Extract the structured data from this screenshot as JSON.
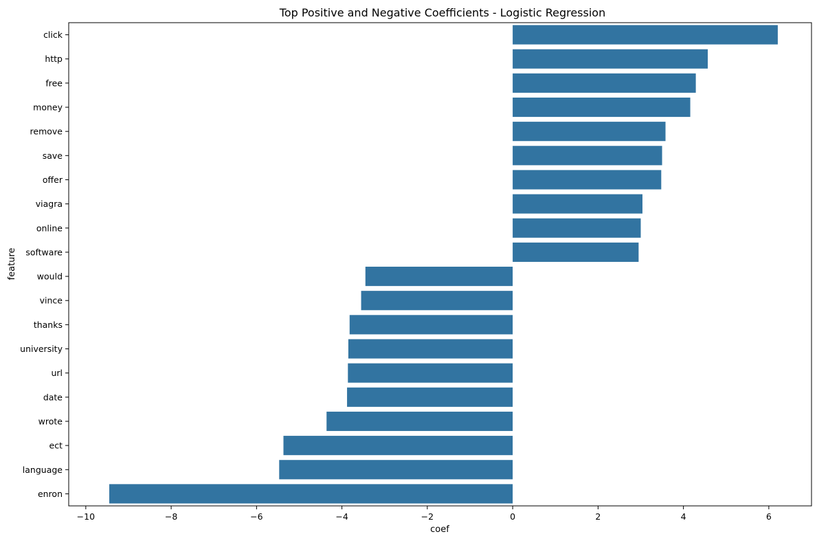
{
  "chart_data": {
    "type": "bar",
    "orientation": "horizontal",
    "title": "Top Positive and Negative Coefficients - Logistic Regression",
    "xlabel": "coef",
    "ylabel": "feature",
    "categories": [
      "click",
      "http",
      "free",
      "money",
      "remove",
      "save",
      "offer",
      "viagra",
      "online",
      "software",
      "would",
      "vince",
      "thanks",
      "university",
      "url",
      "date",
      "wrote",
      "ect",
      "language",
      "enron"
    ],
    "values": [
      6.21,
      4.57,
      4.29,
      4.16,
      3.58,
      3.5,
      3.48,
      3.04,
      3.0,
      2.95,
      -3.45,
      -3.55,
      -3.82,
      -3.85,
      -3.86,
      -3.88,
      -4.36,
      -5.37,
      -5.47,
      -9.45
    ],
    "xlim": [
      -10.4,
      7.0
    ],
    "xticks": [
      -10,
      -8,
      -6,
      -4,
      -2,
      0,
      2,
      4,
      6
    ],
    "xtick_labels": [
      "−10",
      "−8",
      "−6",
      "−4",
      "−2",
      "0",
      "2",
      "4",
      "6"
    ],
    "bar_color": "#3274a1",
    "grid": false,
    "legend": "none"
  }
}
